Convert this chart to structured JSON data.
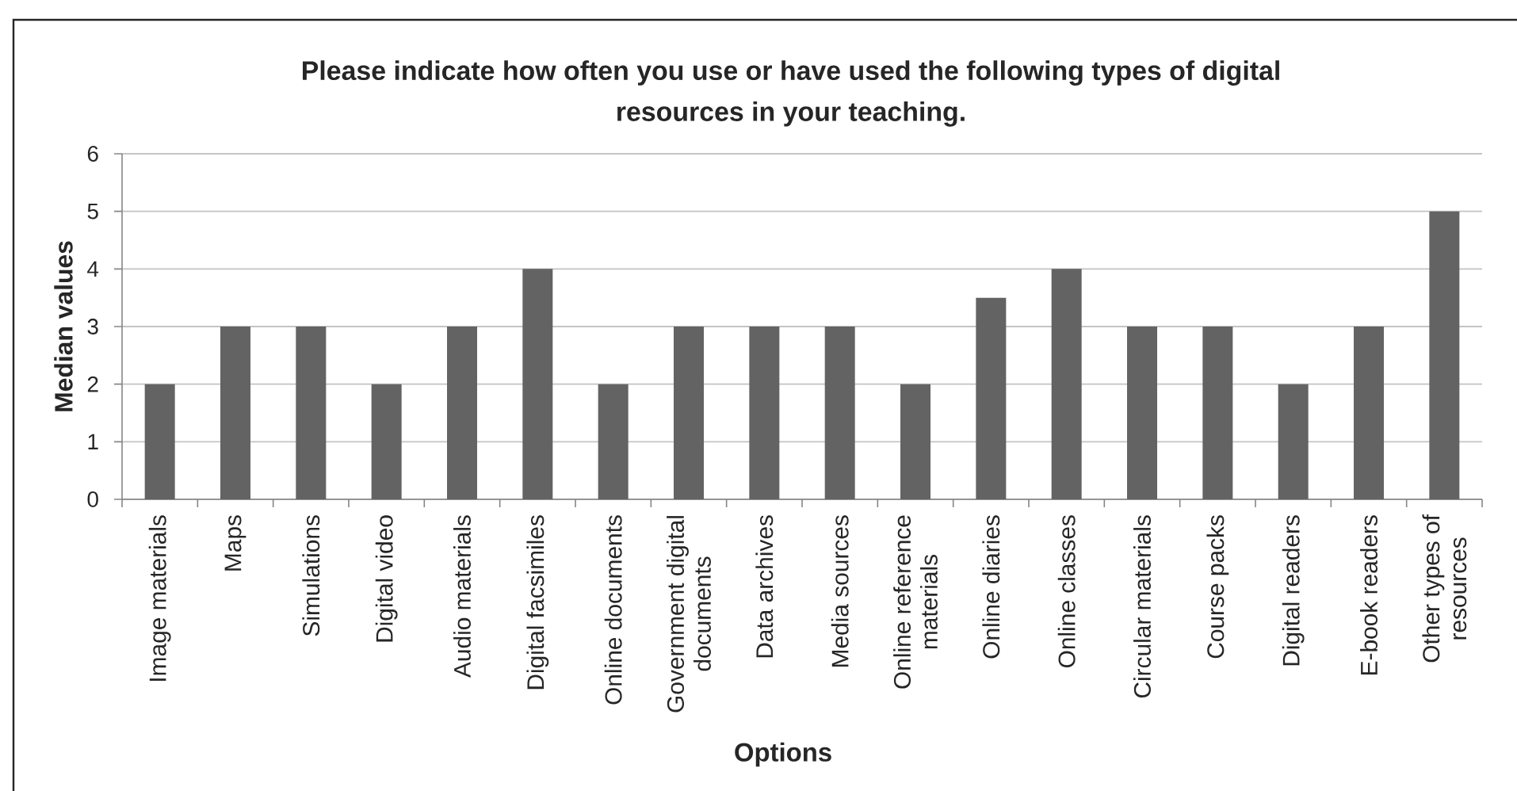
{
  "chart_data": {
    "type": "bar",
    "title": "Please indicate how often you use or have used the following types of digital resources in your teaching.",
    "xlabel": "Options",
    "ylabel": "Median values",
    "categories": [
      "Image materials",
      "Maps",
      "Simulations",
      "Digital video",
      "Audio materials",
      "Digital facsimiles",
      "Online documents",
      "Government digital documents",
      "Data archives",
      "Media sources",
      "Online reference materials",
      "Online diaries",
      "Online classes",
      "Circular materials",
      "Course packs",
      "Digital readers",
      "E-book readers",
      "Other types of resources"
    ],
    "values": [
      2,
      3,
      3,
      2,
      3,
      4,
      2,
      3,
      3,
      3,
      2,
      3.5,
      4,
      3,
      3,
      2,
      3,
      5
    ],
    "color": "#636363",
    "ylim": [
      0,
      6
    ],
    "yticks": [
      0,
      1,
      2,
      3,
      4,
      5,
      6
    ],
    "grid": "y"
  }
}
